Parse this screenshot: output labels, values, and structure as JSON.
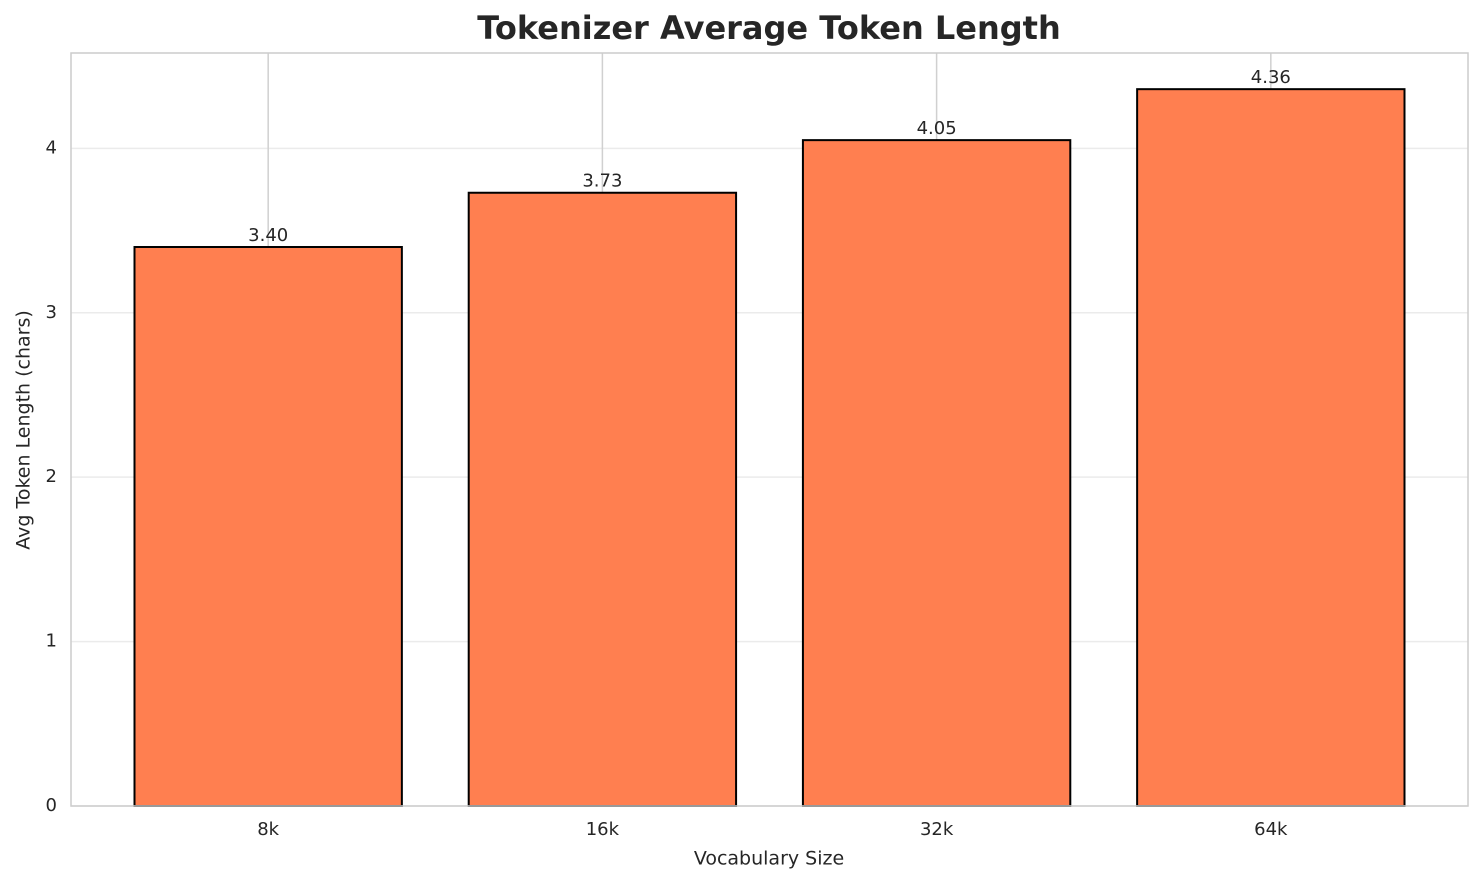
{
  "chart_data": {
    "type": "bar",
    "title": "Tokenizer Average Token Length",
    "x_label": "Vocabulary Size",
    "y_label": "Avg Token Length (chars)",
    "categories": [
      "8k",
      "16k",
      "32k",
      "64k"
    ],
    "values": [
      3.4,
      3.73,
      4.05,
      4.36
    ],
    "value_labels": [
      "3.40",
      "3.73",
      "4.05",
      "4.36"
    ],
    "color": "#ff7f50",
    "edgecolor": "#000000",
    "ylim": [
      0,
      4.58
    ],
    "yticks": [
      0,
      1,
      2,
      3,
      4
    ],
    "grid": true
  }
}
